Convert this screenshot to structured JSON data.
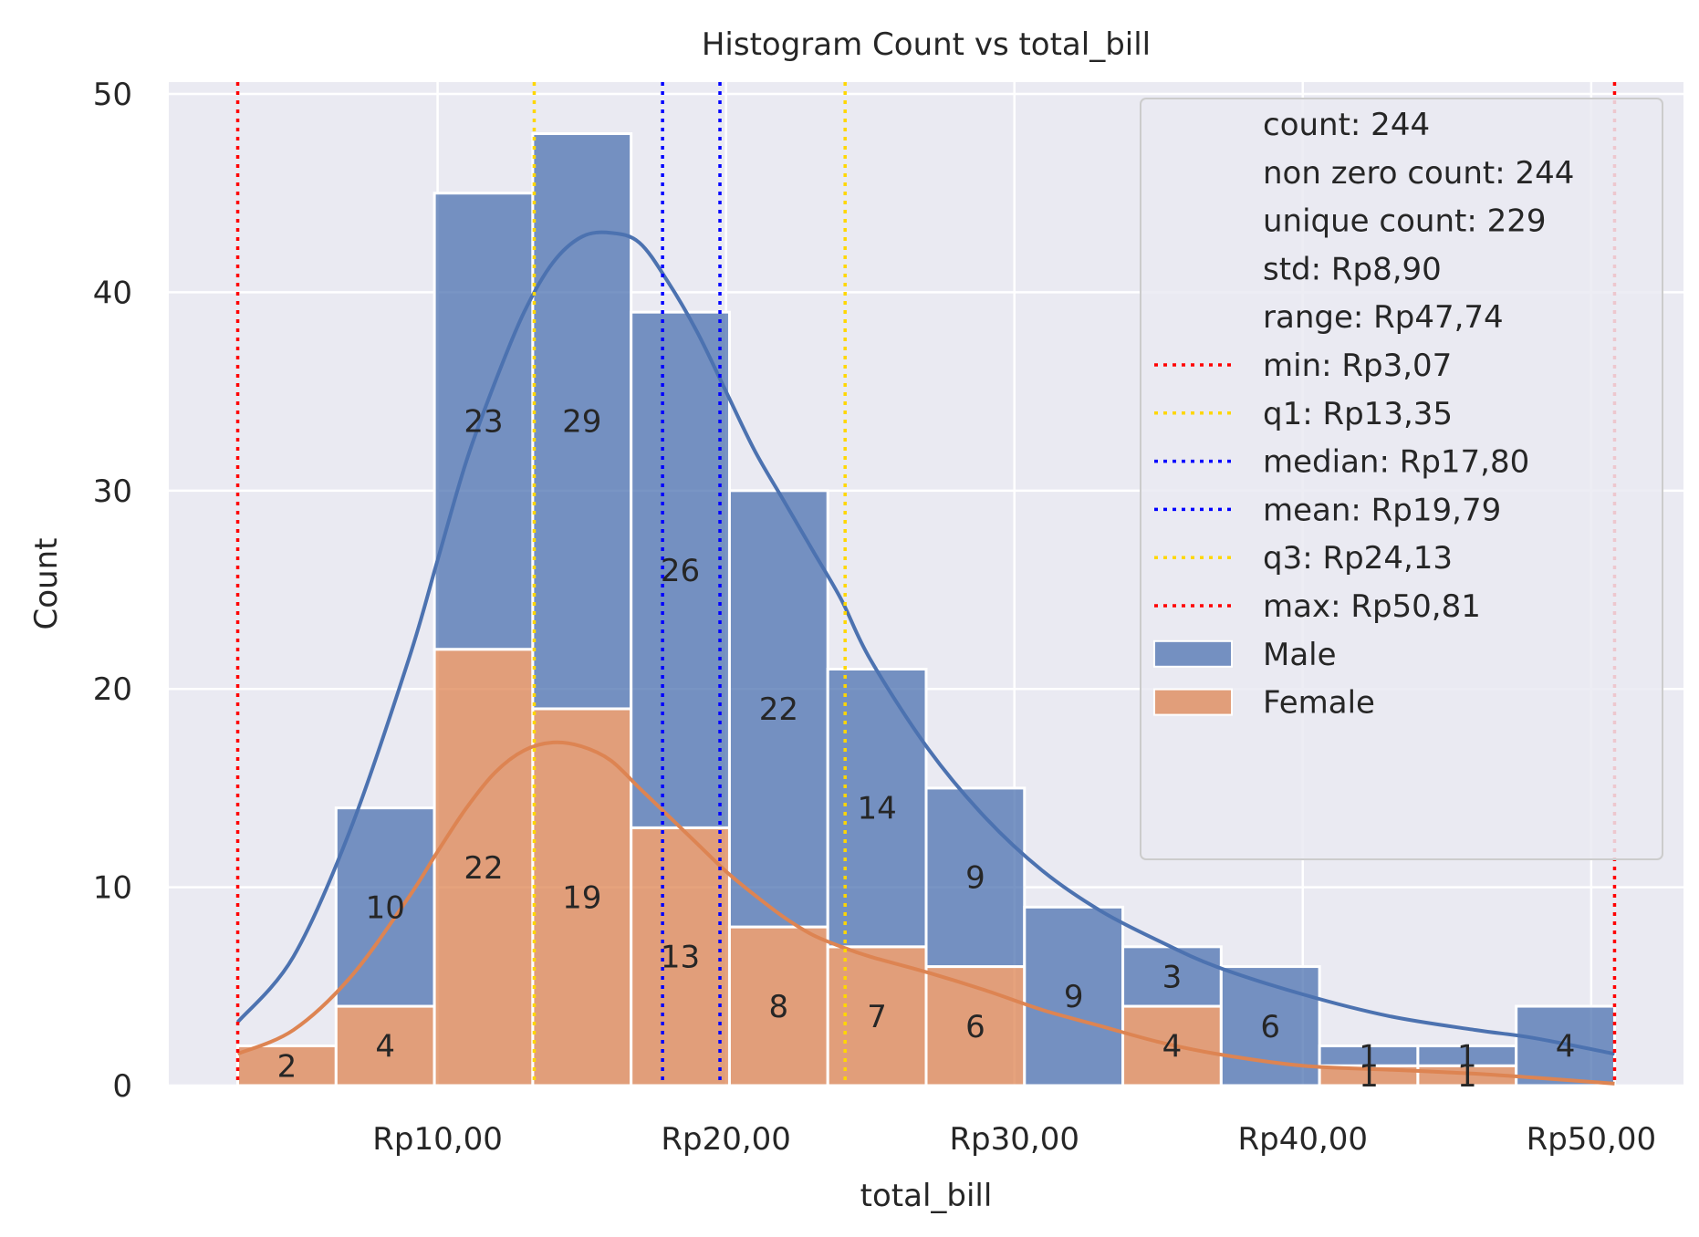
{
  "chart_data": {
    "type": "bar",
    "title": "Histogram Count vs total_bill",
    "xlabel": "total_bill",
    "ylabel": "Count",
    "xlim": [
      0.68,
      53.2
    ],
    "ylim": [
      0,
      50.6
    ],
    "grid": true,
    "legend_position": "top-right",
    "x_ticks": [
      {
        "value": 10,
        "label": "Rp10,00"
      },
      {
        "value": 20,
        "label": "Rp20,00"
      },
      {
        "value": 30,
        "label": "Rp30,00"
      },
      {
        "value": 40,
        "label": "Rp40,00"
      },
      {
        "value": 50,
        "label": "Rp50,00"
      }
    ],
    "y_ticks": [
      0,
      10,
      20,
      30,
      40,
      50
    ],
    "bin_edges": [
      3.07,
      6.48,
      9.89,
      13.3,
      16.71,
      20.12,
      23.53,
      26.94,
      30.35,
      33.76,
      37.17,
      40.58,
      43.99,
      47.4,
      50.81
    ],
    "series": [
      {
        "name": "Female",
        "color": "#dd8452",
        "values": [
          2,
          4,
          22,
          19,
          13,
          8,
          7,
          6,
          0,
          4,
          0,
          1,
          1,
          0
        ]
      },
      {
        "name": "Male",
        "color": "#4c72b0",
        "values": [
          0,
          10,
          23,
          29,
          26,
          22,
          14,
          9,
          9,
          3,
          6,
          1,
          1,
          4
        ]
      }
    ],
    "bar_labels": {
      "female": [
        "2",
        "4",
        "22",
        "19",
        "13",
        "8",
        "7",
        "6",
        "",
        "4",
        "",
        "1",
        "1",
        ""
      ],
      "male": [
        "",
        "10",
        "23",
        "29",
        "26",
        "22",
        "14",
        "9",
        "9",
        "3",
        "6",
        "1",
        "1",
        "4"
      ]
    },
    "kde": {
      "male": {
        "color": "#4c72b0",
        "x": [
          3.07,
          5,
          7,
          9,
          10,
          11,
          12,
          13,
          14,
          15,
          16,
          17,
          18,
          19,
          20,
          21,
          22,
          23,
          24,
          25,
          27,
          29,
          31,
          33,
          35,
          37,
          40,
          43,
          46,
          48,
          50.81
        ],
        "y": [
          3.2,
          6.5,
          13,
          21.5,
          26.5,
          31.5,
          35.5,
          39,
          41.5,
          42.8,
          43,
          42.5,
          40.5,
          38,
          35,
          32,
          29.5,
          27,
          24.5,
          21.5,
          17,
          13.5,
          10.8,
          8.8,
          7.3,
          6,
          4.6,
          3.5,
          2.8,
          2.4,
          1.6
        ]
      },
      "female": {
        "color": "#dd8452",
        "x": [
          3.07,
          5,
          7,
          9,
          10,
          11,
          12,
          13,
          14,
          15,
          16,
          17,
          18,
          19,
          20,
          21,
          22,
          23,
          24,
          25,
          27,
          29,
          31,
          33,
          35,
          37,
          40,
          43,
          46,
          48,
          50.81
        ],
        "y": [
          1.6,
          2.8,
          5.5,
          9.5,
          11.8,
          14,
          15.8,
          16.9,
          17.3,
          17.1,
          16.4,
          15,
          13.6,
          12.2,
          10.8,
          9.6,
          8.5,
          7.6,
          7,
          6.5,
          5.7,
          4.8,
          3.8,
          3,
          2.2,
          1.6,
          1,
          0.8,
          0.6,
          0.4,
          0.1
        ]
      }
    },
    "stat_lines": [
      {
        "label": "min: Rp3,07",
        "value": 3.07,
        "color": "#ff0000"
      },
      {
        "label": "q1: Rp13,35",
        "value": 13.35,
        "color": "#ffd700"
      },
      {
        "label": "median: Rp17,80",
        "value": 17.8,
        "color": "#0000ff"
      },
      {
        "label": "mean: Rp19,79",
        "value": 19.79,
        "color": "#0000ff"
      },
      {
        "label": "q3: Rp24,13",
        "value": 24.13,
        "color": "#ffd700"
      },
      {
        "label": "max: Rp50,81",
        "value": 50.81,
        "color": "#ff0000"
      }
    ],
    "legend_text_entries": [
      "count: 244",
      "non zero count: 244",
      "unique count: 229",
      "std: Rp8,90",
      "range: Rp47,74"
    ]
  }
}
